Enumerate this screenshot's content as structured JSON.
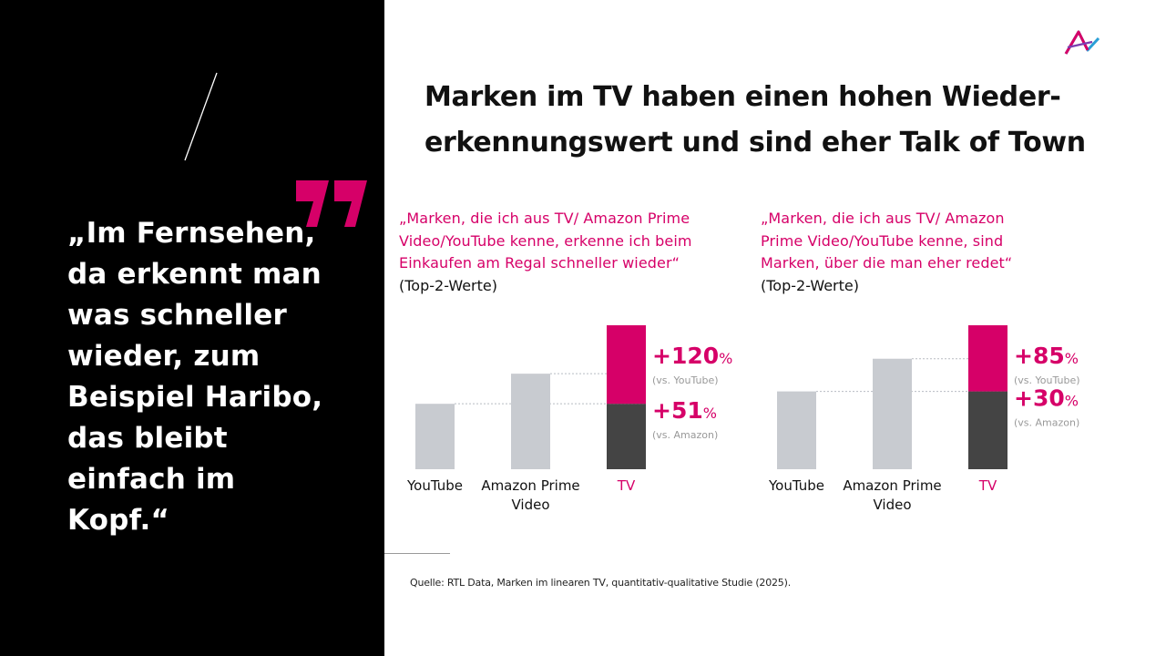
{
  "quote": {
    "text": "„Im Fernsehen,\nda erkennt man\nwas schneller\nwieder, zum\nBeispiel Haribo,\ndas bleibt\neinfach im\nKopf.“"
  },
  "title": "Marken im TV haben einen hohen Wieder-\nerkennungswert und sind eher Talk of Town",
  "colors": {
    "accent": "#d60068",
    "tv_base": "#444444",
    "bar_gray": "#c8cbd0",
    "panel": "#000000"
  },
  "icons": {
    "logo": "brand-logo-icon",
    "quote": "quote-mark-icon",
    "slash": "slash-decoration"
  },
  "chart_data": [
    {
      "type": "bar",
      "title": "„Marken, die ich aus TV/ Amazon Prime\nVideo/YouTube kenne, erkenne ich beim\nEinkaufen am Regal schneller wieder“",
      "subtitle": "(Top-2-Werte)",
      "categories": [
        "YouTube",
        "Amazon Prime\nVideo",
        "TV"
      ],
      "highlight_category": "TV",
      "values": [
        1.0,
        1.46,
        2.2
      ],
      "ylim": [
        0,
        2.2
      ],
      "grid": false,
      "annotations": [
        {
          "big": "+120",
          "unit": "%",
          "small": "(vs. YouTube)"
        },
        {
          "big": "+51",
          "unit": "%",
          "small": "(vs. Amazon)"
        }
      ]
    },
    {
      "type": "bar",
      "title": "„Marken, die ich aus TV/ Amazon\nPrime Video/YouTube kenne, sind\nMarken, über die man eher redet“",
      "subtitle": "(Top-2-Werte)",
      "categories": [
        "YouTube",
        "Amazon Prime\nVideo",
        "TV"
      ],
      "highlight_category": "TV",
      "values": [
        1.0,
        1.42,
        1.85
      ],
      "ylim": [
        0,
        1.85
      ],
      "grid": false,
      "annotations": [
        {
          "big": "+85",
          "unit": "%",
          "small": "(vs. YouTube)"
        },
        {
          "big": "+30",
          "unit": "%",
          "small": "(vs. Amazon)"
        }
      ]
    }
  ],
  "source": "Quelle: RTL Data, Marken im linearen TV, quantitativ-qualitative Studie (2025)."
}
